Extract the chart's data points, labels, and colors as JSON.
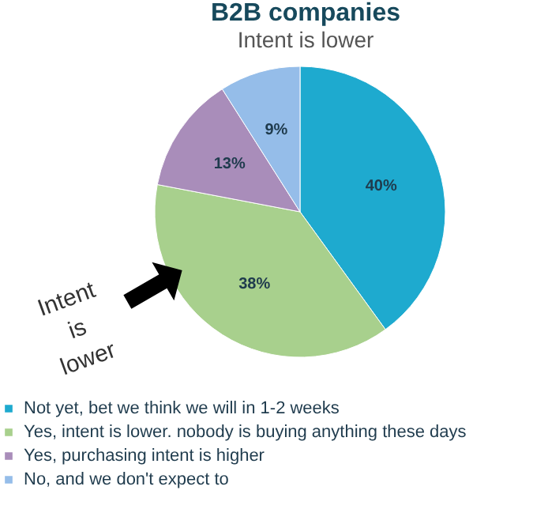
{
  "chart_data": {
    "type": "pie",
    "title": "B2B companies",
    "subtitle": "Intent is lower",
    "categories": [
      "Not yet, bet we think we will in 1-2 weeks",
      "Yes, intent is lower. nobody is buying anything these days",
      "Yes, purchasing intent is higher",
      "No, and we don't expect to"
    ],
    "values": [
      40,
      38,
      13,
      9
    ],
    "value_labels": [
      "40%",
      "38%",
      "13%",
      "9%"
    ],
    "colors": [
      "#1eaacf",
      "#a8d08d",
      "#a98dba",
      "#95bde9"
    ],
    "annotations": [
      "Intent is lower"
    ],
    "legend": "bottom"
  }
}
